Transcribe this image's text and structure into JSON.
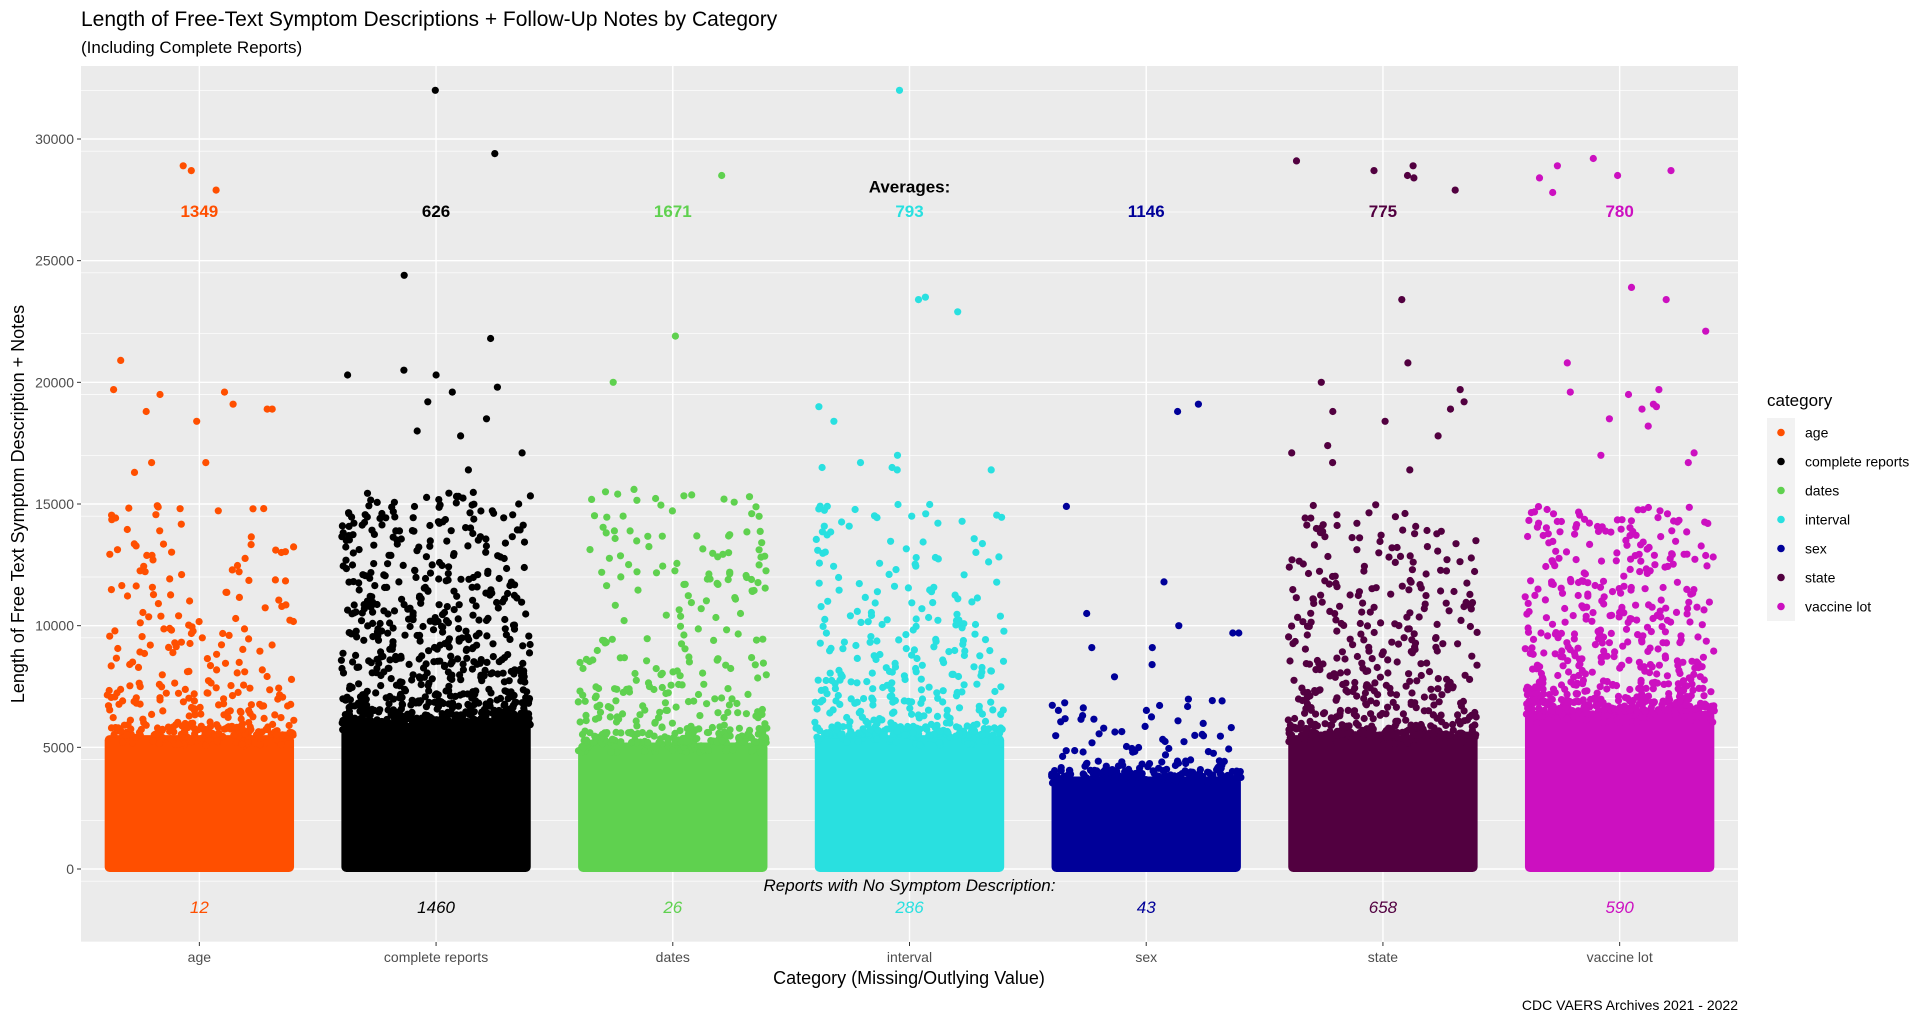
{
  "chart_data": {
    "type": "scatter",
    "title": "Length of Free-Text Symptom Descriptions + Follow-Up Notes by Category",
    "subtitle": "(Including Complete Reports)",
    "xlabel": "Category (Missing/Outlying Value)",
    "ylabel": "Length of Free Text Symptom Description + Notes",
    "caption": "CDC VAERS Archives 2021 - 2022",
    "ylim": [
      -3000,
      33000
    ],
    "y_ticks": [
      0,
      5000,
      10000,
      15000,
      20000,
      25000,
      30000
    ],
    "y_tick_labels": [
      "0",
      "5000",
      "10000",
      "15000",
      "20000",
      "25000",
      "30000"
    ],
    "categories": [
      "age",
      "complete reports",
      "dates",
      "interval",
      "sex",
      "state",
      "vaccine lot"
    ],
    "grid": true,
    "legend": {
      "title": "category",
      "position": "right",
      "entries": [
        "age",
        "complete reports",
        "dates",
        "interval",
        "sex",
        "state",
        "vaccine lot"
      ]
    },
    "colors": [
      "#ff4f00",
      "#000000",
      "#5fd14f",
      "#29e0e0",
      "#000099",
      "#520040",
      "#cc10c0"
    ],
    "averages_label": "Averages:",
    "averages": [
      "1349",
      "626",
      "1671",
      "793",
      "1146",
      "775",
      "780"
    ],
    "no_symptom_label": "Reports with No Symptom Description:",
    "no_symptom_counts": [
      "12",
      "1460",
      "26",
      "286",
      "43",
      "658",
      "590"
    ],
    "series": [
      {
        "name": "age",
        "dense_max": 5500,
        "sparse_max": 15000,
        "n_sparse": 260,
        "outliers": [
          28900,
          27900,
          28700,
          20900,
          19700,
          19500,
          19600,
          19100,
          18900,
          18900,
          18800,
          18400,
          16700,
          16700,
          16300
        ]
      },
      {
        "name": "complete reports",
        "dense_max": 6000,
        "sparse_max": 15500,
        "n_sparse": 700,
        "outliers": [
          32000,
          29400,
          24400,
          21800,
          20500,
          20300,
          20300,
          19800,
          19600,
          19200,
          18500,
          18000,
          17800,
          17100,
          16400
        ]
      },
      {
        "name": "dates",
        "dense_max": 5200,
        "sparse_max": 15500,
        "n_sparse": 300,
        "outliers": [
          28500,
          21900,
          20000,
          15600,
          15500,
          15300,
          15200
        ]
      },
      {
        "name": "interval",
        "dense_max": 5500,
        "sparse_max": 15000,
        "n_sparse": 320,
        "outliers": [
          32000,
          23500,
          23400,
          22900,
          19000,
          18400,
          17000,
          16700,
          16500,
          16500,
          16400,
          16400
        ]
      },
      {
        "name": "sex",
        "dense_max": 3800,
        "sparse_max": 7000,
        "n_sparse": 120,
        "outliers": [
          19100,
          18800,
          14900,
          11800,
          10500,
          10000,
          9700,
          9700,
          9100,
          9100,
          8400,
          7900
        ]
      },
      {
        "name": "state",
        "dense_max": 5500,
        "sparse_max": 15000,
        "n_sparse": 420,
        "outliers": [
          29100,
          28900,
          28700,
          28500,
          28400,
          27900,
          23400,
          20800,
          20000,
          19700,
          19200,
          18900,
          18800,
          18400,
          17800,
          17400,
          17100,
          16700,
          16400
        ]
      },
      {
        "name": "vaccine lot",
        "dense_max": 6500,
        "sparse_max": 15000,
        "n_sparse": 520,
        "outliers": [
          29200,
          28900,
          28700,
          28500,
          28400,
          27800,
          23900,
          23400,
          22100,
          20800,
          19700,
          19600,
          19500,
          19100,
          19000,
          18900,
          18500,
          18200,
          17100,
          17000,
          16700
        ]
      }
    ]
  }
}
